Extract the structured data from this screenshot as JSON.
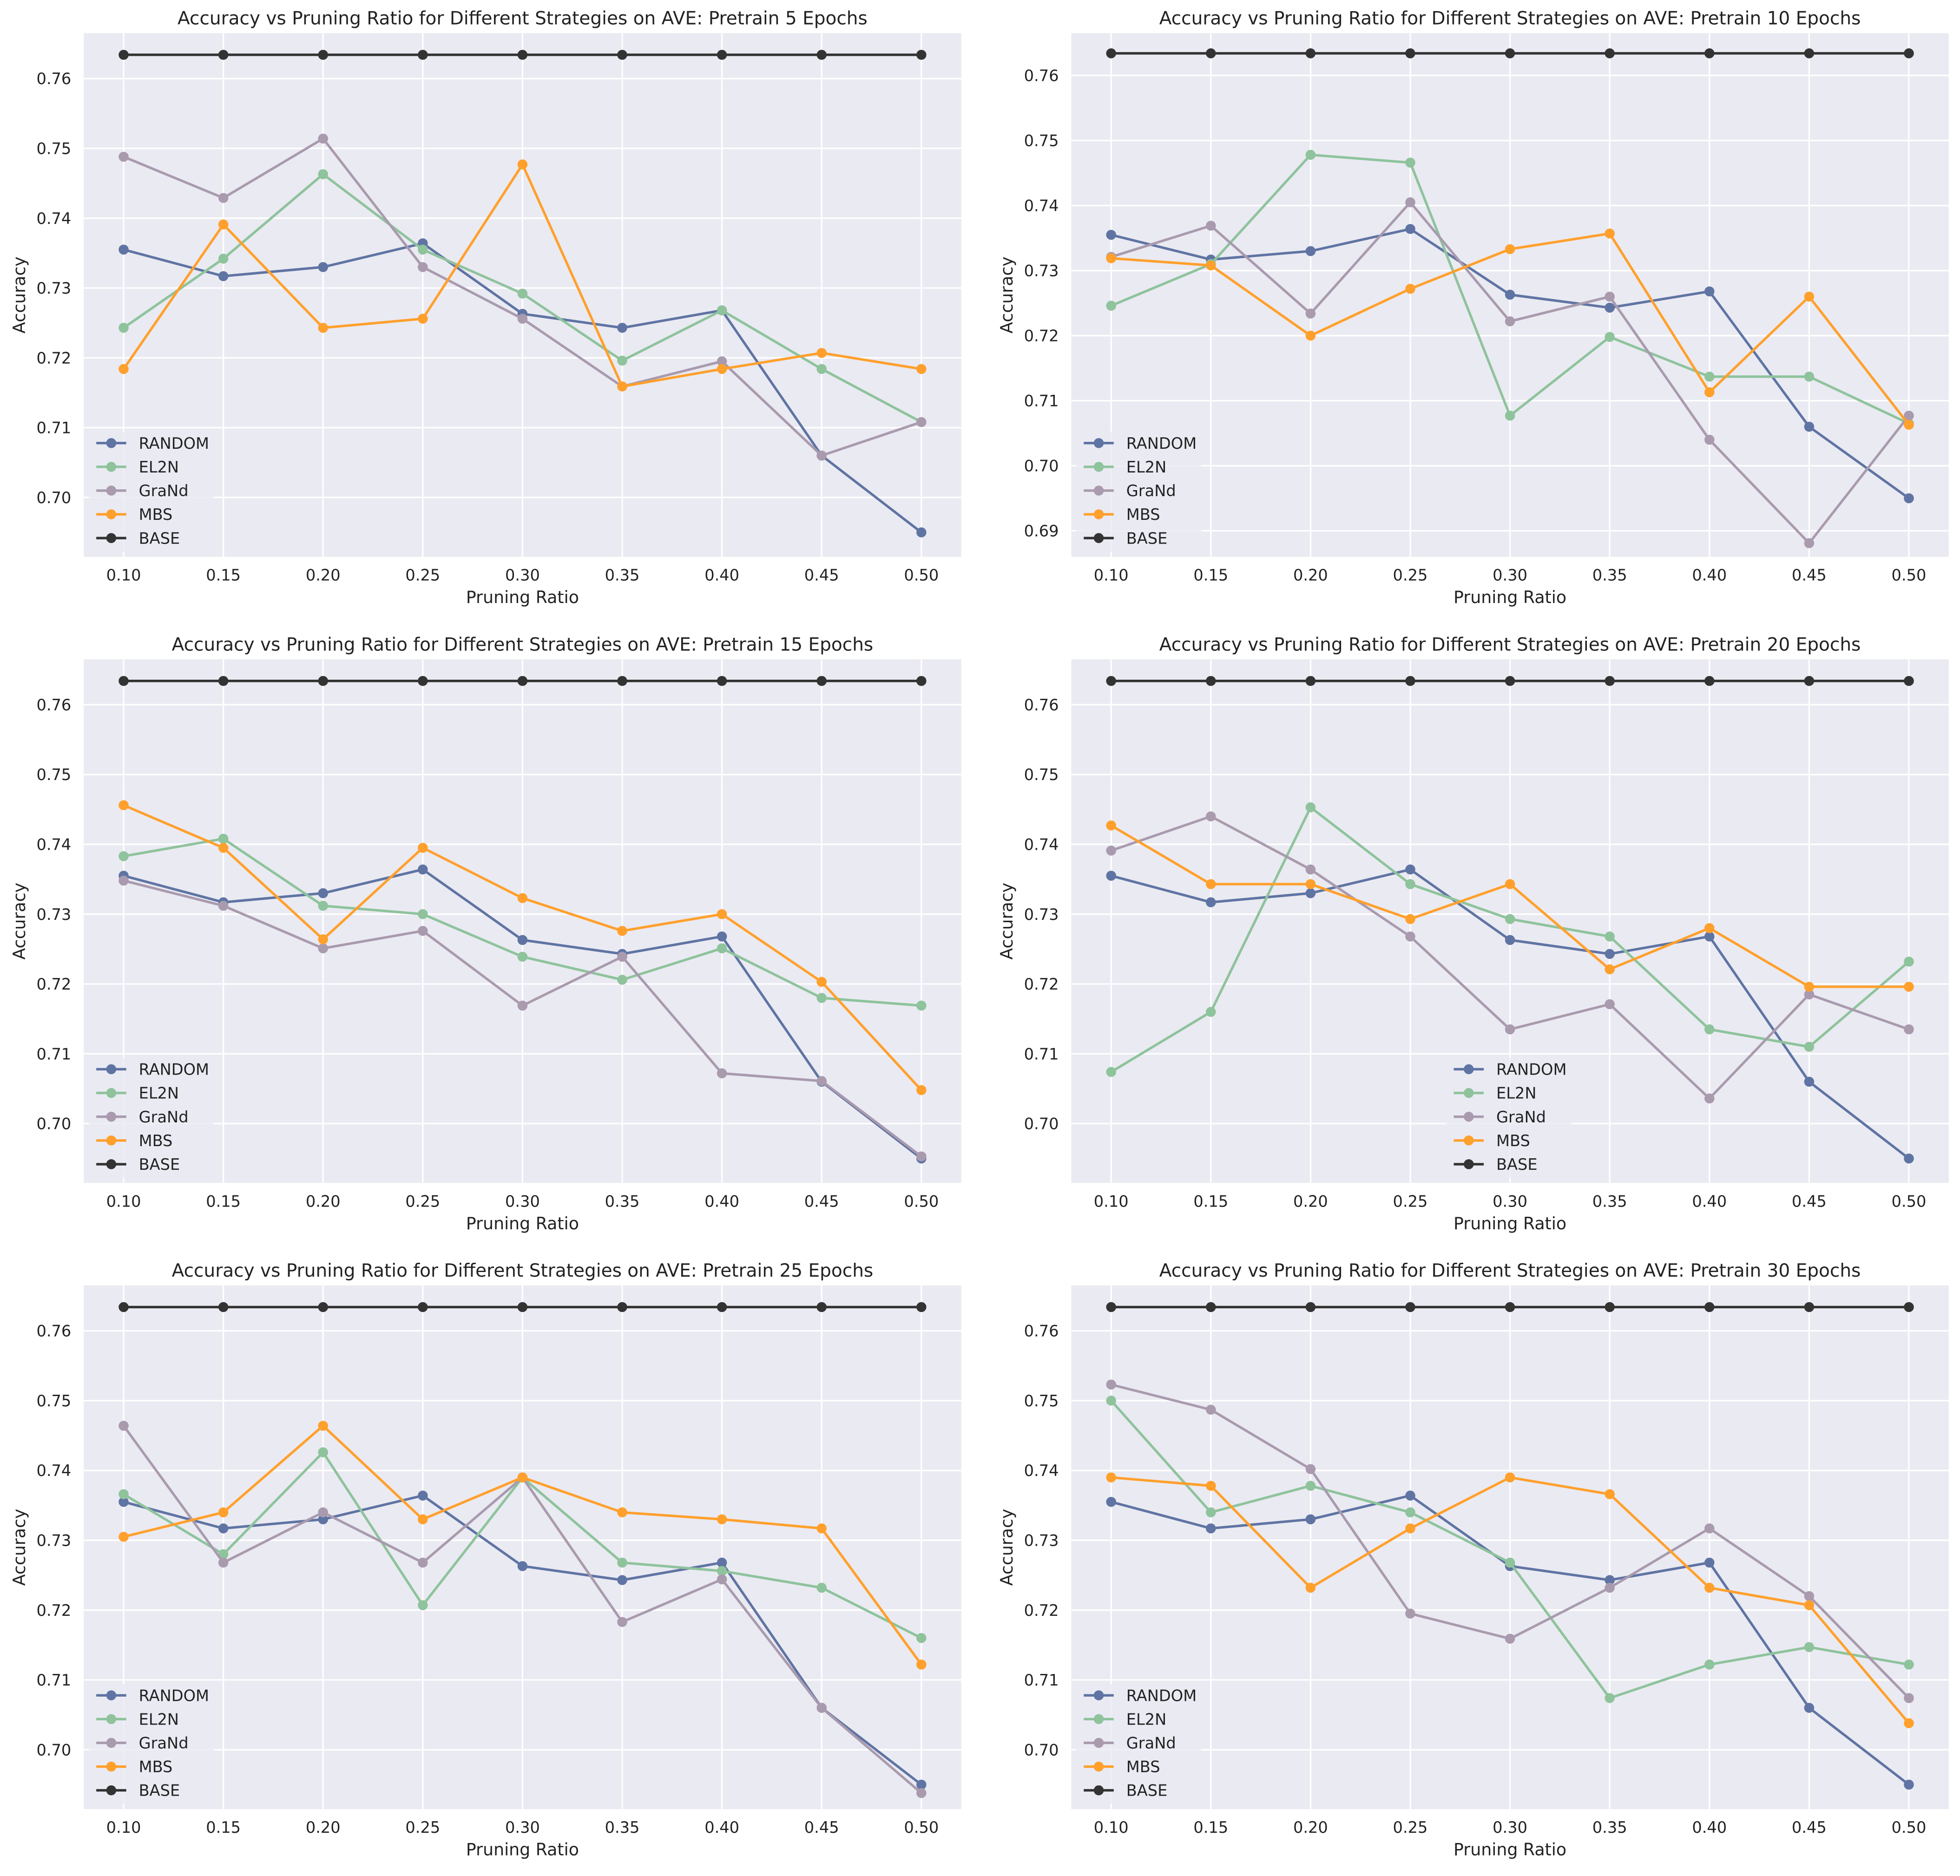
{
  "colors": {
    "RANDOM": "#5f74a3",
    "EL2N": "#8ec39c",
    "GraNd": "#a99aae",
    "MBS": "#ffa02c",
    "BASE": "#333333",
    "background": "#eaeaf2",
    "grid": "#ffffff"
  },
  "chart_data": [
    {
      "type": "line",
      "title": "Accuracy vs Pruning Ratio for Different Strategies on AVE: Pretrain 5 Epochs",
      "xlabel": "Pruning Ratio",
      "ylabel": "Accuracy",
      "x": [
        0.1,
        0.15,
        0.2,
        0.25,
        0.3,
        0.35,
        0.4,
        0.45,
        0.5
      ],
      "xticks": [
        "0.10",
        "0.15",
        "0.20",
        "0.25",
        "0.30",
        "0.35",
        "0.40",
        "0.45",
        "0.50"
      ],
      "yticks": [
        "0.70",
        "0.71",
        "0.72",
        "0.73",
        "0.74",
        "0.75",
        "0.76"
      ],
      "ylim": [
        0.6915,
        0.7665
      ],
      "legend": "lower-left",
      "grid": true,
      "series": [
        {
          "name": "RANDOM",
          "values": [
            0.7355,
            0.7317,
            0.733,
            0.7364,
            0.7263,
            0.7243,
            0.7268,
            0.706,
            0.695
          ]
        },
        {
          "name": "EL2N",
          "values": [
            0.7243,
            0.7342,
            0.7463,
            0.7355,
            0.7292,
            0.7196,
            0.7268,
            0.7184,
            0.7108
          ]
        },
        {
          "name": "GraNd",
          "values": [
            0.7488,
            0.7429,
            0.7514,
            0.733,
            0.7256,
            0.7159,
            0.7195,
            0.706,
            0.7108
          ]
        },
        {
          "name": "MBS",
          "values": [
            0.7184,
            0.7391,
            0.7243,
            0.7256,
            0.7477,
            0.7159,
            0.7184,
            0.7207,
            0.7184
          ]
        },
        {
          "name": "BASE",
          "values": [
            0.7634,
            0.7634,
            0.7634,
            0.7634,
            0.7634,
            0.7634,
            0.7634,
            0.7634,
            0.7634
          ]
        }
      ]
    },
    {
      "type": "line",
      "title": "Accuracy vs Pruning Ratio for Different Strategies on AVE: Pretrain 10 Epochs",
      "xlabel": "Pruning Ratio",
      "ylabel": "Accuracy",
      "x": [
        0.1,
        0.15,
        0.2,
        0.25,
        0.3,
        0.35,
        0.4,
        0.45,
        0.5
      ],
      "xticks": [
        "0.10",
        "0.15",
        "0.20",
        "0.25",
        "0.30",
        "0.35",
        "0.40",
        "0.45",
        "0.50"
      ],
      "yticks": [
        "0.69",
        "0.70",
        "0.71",
        "0.72",
        "0.73",
        "0.74",
        "0.75",
        "0.76"
      ],
      "ylim": [
        0.686,
        0.7665
      ],
      "legend": "lower-left",
      "grid": true,
      "series": [
        {
          "name": "RANDOM",
          "values": [
            0.7355,
            0.7317,
            0.733,
            0.7364,
            0.7263,
            0.7243,
            0.7268,
            0.706,
            0.695
          ]
        },
        {
          "name": "EL2N",
          "values": [
            0.7246,
            0.731,
            0.7478,
            0.7466,
            0.7077,
            0.7198,
            0.7137,
            0.7137,
            0.7065
          ]
        },
        {
          "name": "GraNd",
          "values": [
            0.7321,
            0.7369,
            0.7234,
            0.7405,
            0.7222,
            0.726,
            0.704,
            0.6881,
            0.7077
          ]
        },
        {
          "name": "MBS",
          "values": [
            0.7319,
            0.7308,
            0.72,
            0.7272,
            0.7333,
            0.7357,
            0.7113,
            0.726,
            0.7063
          ]
        },
        {
          "name": "BASE",
          "values": [
            0.7634,
            0.7634,
            0.7634,
            0.7634,
            0.7634,
            0.7634,
            0.7634,
            0.7634,
            0.7634
          ]
        }
      ]
    },
    {
      "type": "line",
      "title": "Accuracy vs Pruning Ratio for Different Strategies on AVE: Pretrain 15 Epochs",
      "xlabel": "Pruning Ratio",
      "ylabel": "Accuracy",
      "x": [
        0.1,
        0.15,
        0.2,
        0.25,
        0.3,
        0.35,
        0.4,
        0.45,
        0.5
      ],
      "xticks": [
        "0.10",
        "0.15",
        "0.20",
        "0.25",
        "0.30",
        "0.35",
        "0.40",
        "0.45",
        "0.50"
      ],
      "yticks": [
        "0.70",
        "0.71",
        "0.72",
        "0.73",
        "0.74",
        "0.75",
        "0.76"
      ],
      "ylim": [
        0.6915,
        0.7665
      ],
      "legend": "lower-left",
      "grid": true,
      "series": [
        {
          "name": "RANDOM",
          "values": [
            0.7355,
            0.7317,
            0.733,
            0.7364,
            0.7263,
            0.7243,
            0.7268,
            0.706,
            0.695
          ]
        },
        {
          "name": "EL2N",
          "values": [
            0.7383,
            0.7408,
            0.7312,
            0.73,
            0.7239,
            0.7206,
            0.7251,
            0.718,
            0.7169
          ]
        },
        {
          "name": "GraNd",
          "values": [
            0.7348,
            0.7312,
            0.7251,
            0.7276,
            0.7169,
            0.7239,
            0.7072,
            0.7061,
            0.6953
          ]
        },
        {
          "name": "MBS",
          "values": [
            0.7456,
            0.7395,
            0.7264,
            0.7395,
            0.7323,
            0.7276,
            0.73,
            0.7203,
            0.7048
          ]
        },
        {
          "name": "BASE",
          "values": [
            0.7634,
            0.7634,
            0.7634,
            0.7634,
            0.7634,
            0.7634,
            0.7634,
            0.7634,
            0.7634
          ]
        }
      ]
    },
    {
      "type": "line",
      "title": "Accuracy vs Pruning Ratio for Different Strategies on AVE: Pretrain 20 Epochs",
      "xlabel": "Pruning Ratio",
      "ylabel": "Accuracy",
      "x": [
        0.1,
        0.15,
        0.2,
        0.25,
        0.3,
        0.35,
        0.4,
        0.45,
        0.5
      ],
      "xticks": [
        "0.10",
        "0.15",
        "0.20",
        "0.25",
        "0.30",
        "0.35",
        "0.40",
        "0.45",
        "0.50"
      ],
      "yticks": [
        "0.70",
        "0.71",
        "0.72",
        "0.73",
        "0.74",
        "0.75",
        "0.76"
      ],
      "ylim": [
        0.6915,
        0.7665
      ],
      "legend": "lower-center",
      "grid": true,
      "series": [
        {
          "name": "RANDOM",
          "values": [
            0.7355,
            0.7317,
            0.733,
            0.7364,
            0.7263,
            0.7243,
            0.7268,
            0.706,
            0.695
          ]
        },
        {
          "name": "EL2N",
          "values": [
            0.7074,
            0.716,
            0.7453,
            0.7343,
            0.7293,
            0.7268,
            0.7135,
            0.711,
            0.7232
          ]
        },
        {
          "name": "GraNd",
          "values": [
            0.7391,
            0.744,
            0.7364,
            0.7268,
            0.7135,
            0.7171,
            0.7036,
            0.7185,
            0.7135
          ]
        },
        {
          "name": "MBS",
          "values": [
            0.7427,
            0.7343,
            0.7343,
            0.7293,
            0.7343,
            0.7221,
            0.728,
            0.7196,
            0.7196
          ]
        },
        {
          "name": "BASE",
          "values": [
            0.7634,
            0.7634,
            0.7634,
            0.7634,
            0.7634,
            0.7634,
            0.7634,
            0.7634,
            0.7634
          ]
        }
      ]
    },
    {
      "type": "line",
      "title": "Accuracy vs Pruning Ratio for Different Strategies on AVE: Pretrain 25 Epochs",
      "xlabel": "Pruning Ratio",
      "ylabel": "Accuracy",
      "x": [
        0.1,
        0.15,
        0.2,
        0.25,
        0.3,
        0.35,
        0.4,
        0.45,
        0.5
      ],
      "xticks": [
        "0.10",
        "0.15",
        "0.20",
        "0.25",
        "0.30",
        "0.35",
        "0.40",
        "0.45",
        "0.50"
      ],
      "yticks": [
        "0.70",
        "0.71",
        "0.72",
        "0.73",
        "0.74",
        "0.75",
        "0.76"
      ],
      "ylim": [
        0.6915,
        0.7665
      ],
      "legend": "lower-left",
      "grid": true,
      "series": [
        {
          "name": "RANDOM",
          "values": [
            0.7355,
            0.7317,
            0.733,
            0.7364,
            0.7263,
            0.7243,
            0.7268,
            0.706,
            0.695
          ]
        },
        {
          "name": "EL2N",
          "values": [
            0.7366,
            0.728,
            0.7426,
            0.7207,
            0.739,
            0.7268,
            0.7256,
            0.7232,
            0.716
          ]
        },
        {
          "name": "GraNd",
          "values": [
            0.7464,
            0.7268,
            0.734,
            0.7268,
            0.739,
            0.7183,
            0.7244,
            0.706,
            0.6938
          ]
        },
        {
          "name": "MBS",
          "values": [
            0.7305,
            0.734,
            0.7464,
            0.733,
            0.739,
            0.734,
            0.733,
            0.7317,
            0.7122
          ]
        },
        {
          "name": "BASE",
          "values": [
            0.7634,
            0.7634,
            0.7634,
            0.7634,
            0.7634,
            0.7634,
            0.7634,
            0.7634,
            0.7634
          ]
        }
      ]
    },
    {
      "type": "line",
      "title": "Accuracy vs Pruning Ratio for Different Strategies on AVE: Pretrain 30 Epochs",
      "xlabel": "Pruning Ratio",
      "ylabel": "Accuracy",
      "x": [
        0.1,
        0.15,
        0.2,
        0.25,
        0.3,
        0.35,
        0.4,
        0.45,
        0.5
      ],
      "xticks": [
        "0.10",
        "0.15",
        "0.20",
        "0.25",
        "0.30",
        "0.35",
        "0.40",
        "0.45",
        "0.50"
      ],
      "yticks": [
        "0.70",
        "0.71",
        "0.72",
        "0.73",
        "0.74",
        "0.75",
        "0.76"
      ],
      "ylim": [
        0.6915,
        0.7665
      ],
      "legend": "lower-left",
      "grid": true,
      "series": [
        {
          "name": "RANDOM",
          "values": [
            0.7355,
            0.7317,
            0.733,
            0.7364,
            0.7263,
            0.7243,
            0.7268,
            0.706,
            0.695
          ]
        },
        {
          "name": "EL2N",
          "values": [
            0.75,
            0.734,
            0.7378,
            0.734,
            0.7268,
            0.7074,
            0.7122,
            0.7147,
            0.7122
          ]
        },
        {
          "name": "GraNd",
          "values": [
            0.7523,
            0.7487,
            0.7402,
            0.7195,
            0.7159,
            0.7232,
            0.7317,
            0.722,
            0.7074
          ]
        },
        {
          "name": "MBS",
          "values": [
            0.739,
            0.7378,
            0.7232,
            0.7317,
            0.739,
            0.7366,
            0.7232,
            0.7207,
            0.7038
          ]
        },
        {
          "name": "BASE",
          "values": [
            0.7634,
            0.7634,
            0.7634,
            0.7634,
            0.7634,
            0.7634,
            0.7634,
            0.7634,
            0.7634
          ]
        }
      ]
    }
  ]
}
